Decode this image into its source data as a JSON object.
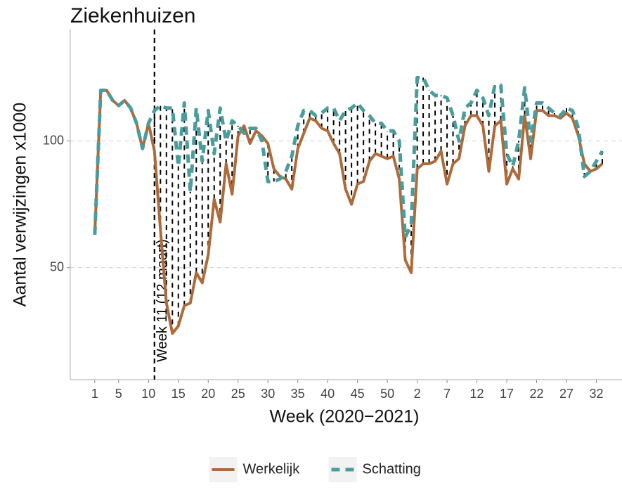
{
  "chart_data": {
    "type": "line",
    "title": "Ziekenhuizen",
    "x_label": "Week (2020−2021)",
    "y_label": "Aantal verwijzingen x1000",
    "x": [
      1,
      2,
      3,
      4,
      5,
      6,
      7,
      8,
      9,
      10,
      11,
      12,
      13,
      14,
      15,
      16,
      17,
      18,
      19,
      20,
      21,
      22,
      23,
      24,
      25,
      26,
      27,
      28,
      29,
      30,
      31,
      32,
      33,
      34,
      35,
      36,
      37,
      38,
      39,
      40,
      41,
      42,
      43,
      44,
      45,
      46,
      47,
      48,
      49,
      50,
      51,
      52,
      53,
      54,
      55,
      56,
      57,
      58,
      59,
      60,
      61,
      62,
      63,
      64,
      65,
      66,
      67,
      68,
      69,
      70,
      71,
      72,
      73,
      74,
      75,
      76,
      77,
      78,
      79,
      80,
      81,
      82,
      83,
      84,
      85,
      86
    ],
    "series": [
      {
        "name": "Werkelijk",
        "color": "#ad6b3b",
        "values": [
          63,
          120,
          120,
          116,
          114,
          116,
          113,
          107,
          97,
          107,
          96,
          65,
          36,
          24,
          27,
          35,
          36,
          48,
          44,
          55,
          77,
          68,
          91,
          79,
          102,
          106,
          99,
          104,
          102,
          99,
          89,
          86,
          85,
          81,
          97,
          103,
          109,
          108,
          105,
          104,
          99,
          95,
          81,
          75,
          83,
          84,
          92,
          95,
          94,
          93,
          94,
          85,
          53,
          48,
          89,
          91,
          91,
          92,
          96,
          83,
          91,
          93,
          106,
          110,
          110,
          106,
          88,
          106,
          108,
          83,
          89,
          85,
          110,
          93,
          112,
          112,
          110,
          110,
          109,
          111,
          109,
          102,
          91,
          88,
          89,
          91
        ]
      },
      {
        "name": "Schatting",
        "color": "#4a9d9c",
        "values": [
          63,
          120,
          120,
          116,
          114,
          116,
          113,
          107,
          97,
          107,
          112,
          114,
          113,
          113,
          90,
          115,
          80,
          113,
          92,
          112,
          95,
          113,
          100,
          108,
          106,
          103,
          105,
          105,
          100,
          84,
          84,
          85,
          88,
          94,
          106,
          112,
          112,
          110,
          111,
          113,
          113,
          108,
          112,
          113,
          115,
          112,
          110,
          107,
          107,
          104,
          104,
          100,
          62,
          67,
          125,
          125,
          120,
          118,
          118,
          117,
          110,
          100,
          113,
          115,
          120,
          117,
          110,
          122,
          122,
          95,
          90,
          100,
          121,
          100,
          115,
          115,
          113,
          111,
          110,
          113,
          112,
          105,
          86,
          88,
          92,
          96
        ]
      }
    ],
    "xlim": [
      -3.1,
      89.3
    ],
    "xticks": [
      1,
      5,
      10,
      15,
      20,
      25,
      30,
      35,
      40,
      45,
      50,
      {
        "value": 55,
        "label": "2"
      },
      {
        "value": 60,
        "label": "7"
      },
      {
        "value": 65,
        "label": "12"
      },
      {
        "value": 70,
        "label": "17"
      },
      {
        "value": 75,
        "label": "22"
      },
      {
        "value": 80,
        "label": "27"
      },
      {
        "value": 85,
        "label": "32"
      }
    ],
    "ylim": [
      5.8,
      144
    ],
    "yticks": [
      50,
      100
    ],
    "grid": true,
    "annotations": [
      {
        "text": "Week 11 (12 maart)",
        "x": 11
      }
    ],
    "legend": "bottom"
  }
}
